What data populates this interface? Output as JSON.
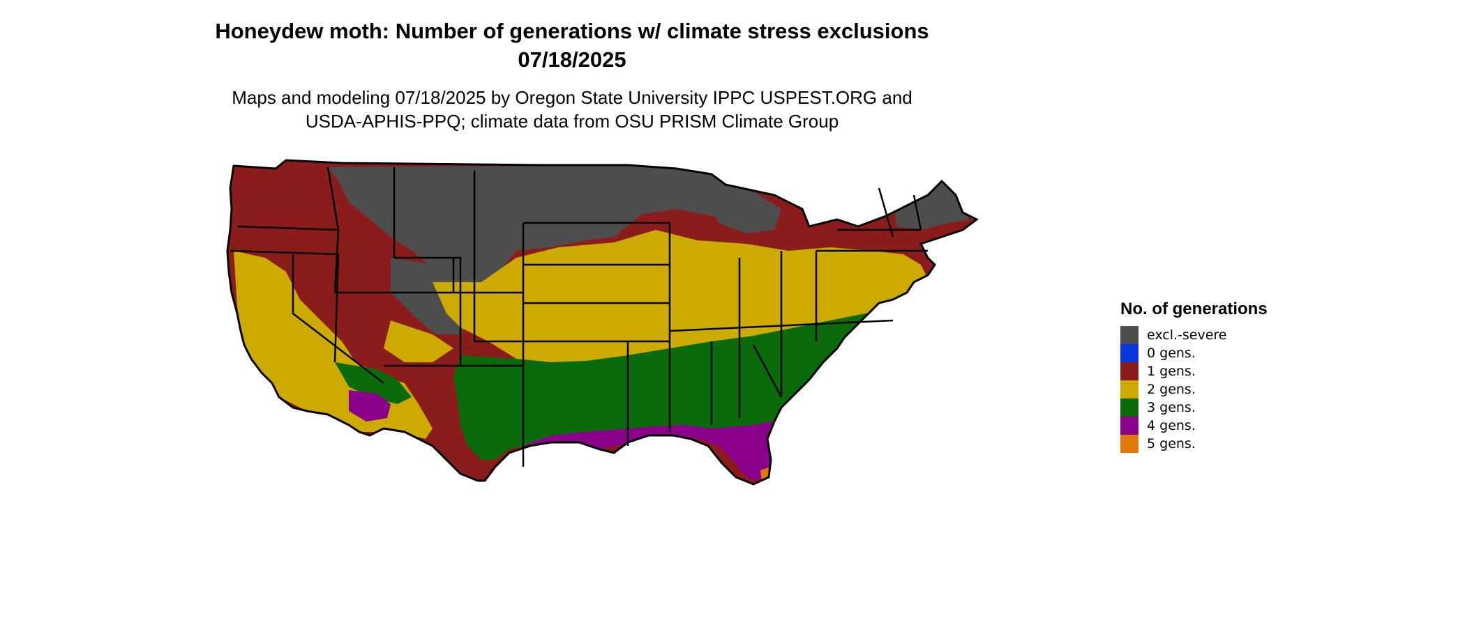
{
  "title": [
    "Honeydew moth: Number of generations w/ climate stress exclusions",
    "07/18/2025"
  ],
  "subtitle": [
    "Maps and modeling 07/18/2025 by Oregon State University IPPC USPEST.ORG and",
    "USDA-APHIS-PPQ; climate data from OSU PRISM Climate Group"
  ],
  "legend": {
    "title": "No. of generations",
    "items": [
      {
        "label": "excl.-severe",
        "color": "#4d4d4d"
      },
      {
        "label": "0 gens.",
        "color": "#0a35d8"
      },
      {
        "label": "1 gens.",
        "color": "#8b1c1c"
      },
      {
        "label": "2 gens.",
        "color": "#ccaa00"
      },
      {
        "label": "3 gens.",
        "color": "#0b6b0b"
      },
      {
        "label": "4 gens.",
        "color": "#8b008b"
      },
      {
        "label": "5 gens.",
        "color": "#e0780a"
      }
    ]
  },
  "highlight_colors": {
    "margin_light_green": "#90ee90",
    "margin_yellow": "#ffff00",
    "margin_magenta": "#ff33ff"
  }
}
